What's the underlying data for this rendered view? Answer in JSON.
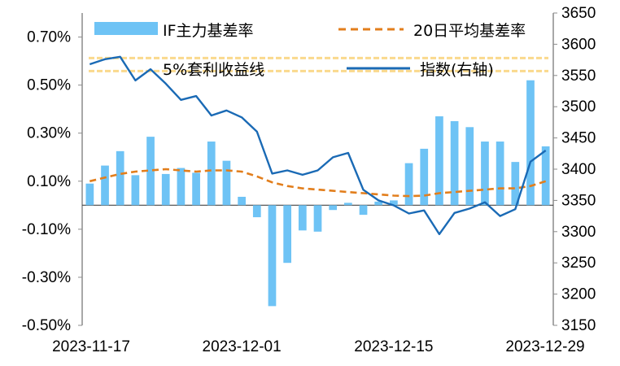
{
  "chart_data": {
    "type": "bar+line",
    "title": "",
    "x": [
      "2023-11-17",
      "2023-11-20",
      "2023-11-21",
      "2023-11-22",
      "2023-11-23",
      "2023-11-24",
      "2023-11-27",
      "2023-11-28",
      "2023-11-29",
      "2023-11-30",
      "2023-12-01",
      "2023-12-04",
      "2023-12-05",
      "2023-12-06",
      "2023-12-07",
      "2023-12-08",
      "2023-12-11",
      "2023-12-12",
      "2023-12-13",
      "2023-12-14",
      "2023-12-15",
      "2023-12-18",
      "2023-12-19",
      "2023-12-20",
      "2023-12-21",
      "2023-12-22",
      "2023-12-25",
      "2023-12-26",
      "2023-12-27",
      "2023-12-28",
      "2023-12-29"
    ],
    "x_tick_labels": [
      "2023-11-17",
      "2023-12-01",
      "2023-12-15",
      "2023-12-29"
    ],
    "series": [
      {
        "name": "IF主力基差率",
        "type": "bar",
        "axis": "left",
        "color": "#6ec3f5",
        "values": [
          0.09,
          0.165,
          0.225,
          0.125,
          0.285,
          0.13,
          0.155,
          0.135,
          0.265,
          0.185,
          0.035,
          -0.05,
          -0.42,
          -0.24,
          -0.105,
          -0.11,
          -0.02,
          0.01,
          -0.04,
          0.015,
          0.02,
          0.175,
          0.235,
          0.37,
          0.35,
          0.325,
          0.265,
          0.265,
          0.18,
          0.52,
          0.245
        ]
      },
      {
        "name": "20日平均基差率",
        "type": "line",
        "axis": "left",
        "color": "#e27e1c",
        "dash": "dashed",
        "values": [
          0.1,
          0.115,
          0.13,
          0.14,
          0.145,
          0.15,
          0.145,
          0.14,
          0.145,
          0.145,
          0.14,
          0.12,
          0.095,
          0.08,
          0.07,
          0.065,
          0.06,
          0.055,
          0.05,
          0.045,
          0.04,
          0.038,
          0.04,
          0.05,
          0.055,
          0.06,
          0.065,
          0.07,
          0.07,
          0.08,
          0.1
        ]
      },
      {
        "name": "5%套利收益线",
        "type": "line",
        "axis": "left",
        "color": "#fad98d",
        "dash": "dashed",
        "values": [
          0.565,
          0.565,
          0.565,
          0.565,
          0.565,
          0.565,
          0.565,
          0.565,
          0.565,
          0.565,
          0.565,
          0.565,
          0.565,
          0.565,
          0.565,
          0.565,
          0.565,
          0.565,
          0.565,
          0.565,
          0.565,
          0.565,
          0.565,
          0.565,
          0.565,
          0.565,
          0.565,
          0.565,
          0.565,
          0.565,
          0.565
        ]
      },
      {
        "name": "指数(右轴)",
        "type": "line",
        "axis": "right",
        "color": "#1a6ab5",
        "dash": "solid",
        "values": [
          3568,
          3576,
          3580,
          3542,
          3560,
          3537,
          3511,
          3517,
          3486,
          3494,
          3483,
          3460,
          3393,
          3398,
          3391,
          3398,
          3419,
          3426,
          3367,
          3350,
          3342,
          3329,
          3334,
          3296,
          3330,
          3337,
          3347,
          3325,
          3336,
          3412,
          3430
        ]
      }
    ],
    "left_axis": {
      "ylim": [
        -0.5,
        0.8
      ],
      "ticks": [
        -0.5,
        -0.3,
        -0.1,
        0.1,
        0.3,
        0.5,
        0.7
      ],
      "tick_labels": [
        "-0.50%",
        "-0.30%",
        "-0.10%",
        "0.10%",
        "0.30%",
        "0.50%",
        "0.70%"
      ]
    },
    "right_axis": {
      "ylim": [
        3150,
        3650
      ],
      "ticks": [
        3150,
        3200,
        3250,
        3300,
        3350,
        3400,
        3450,
        3500,
        3550,
        3600,
        3650
      ],
      "tick_labels": [
        "3150",
        "3200",
        "3250",
        "3300",
        "3350",
        "3400",
        "3450",
        "3500",
        "3550",
        "3600",
        "3650"
      ]
    },
    "legend": {
      "position": "top",
      "entries": [
        "IF主力基差率",
        "20日平均基差率",
        "5%套利收益线",
        "指数(右轴)"
      ]
    }
  }
}
